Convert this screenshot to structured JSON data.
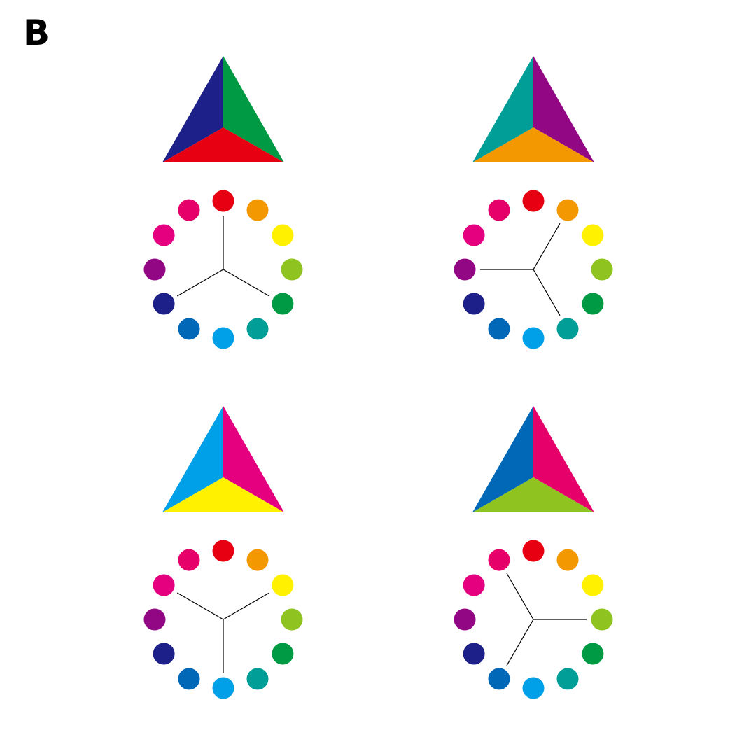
{
  "panel_label": "B",
  "wheel_colors": [
    "#e60012",
    "#f39800",
    "#fff100",
    "#8fc31f",
    "#009944",
    "#009e96",
    "#00a0e9",
    "#0068b7",
    "#1d2088",
    "#920783",
    "#e4007f",
    "#e5006a"
  ],
  "triads": [
    {
      "name": "red-green-blue",
      "indices": [
        0,
        4,
        8
      ],
      "triangle_colors": {
        "left": "#1d2088",
        "right": "#009944",
        "bottom": "#e60012"
      }
    },
    {
      "name": "orange-teal-purple",
      "indices": [
        1,
        5,
        9
      ],
      "triangle_colors": {
        "left": "#009e96",
        "right": "#920783",
        "bottom": "#f39800"
      }
    },
    {
      "name": "yellow-cyan-magenta",
      "indices": [
        2,
        6,
        10
      ],
      "triangle_colors": {
        "left": "#00a0e9",
        "right": "#e4007f",
        "bottom": "#fff100"
      }
    },
    {
      "name": "yellowgreen-blue-crimson",
      "indices": [
        3,
        7,
        11
      ],
      "triangle_colors": {
        "left": "#0068b7",
        "right": "#e5006a",
        "bottom": "#8fc31f"
      }
    }
  ]
}
